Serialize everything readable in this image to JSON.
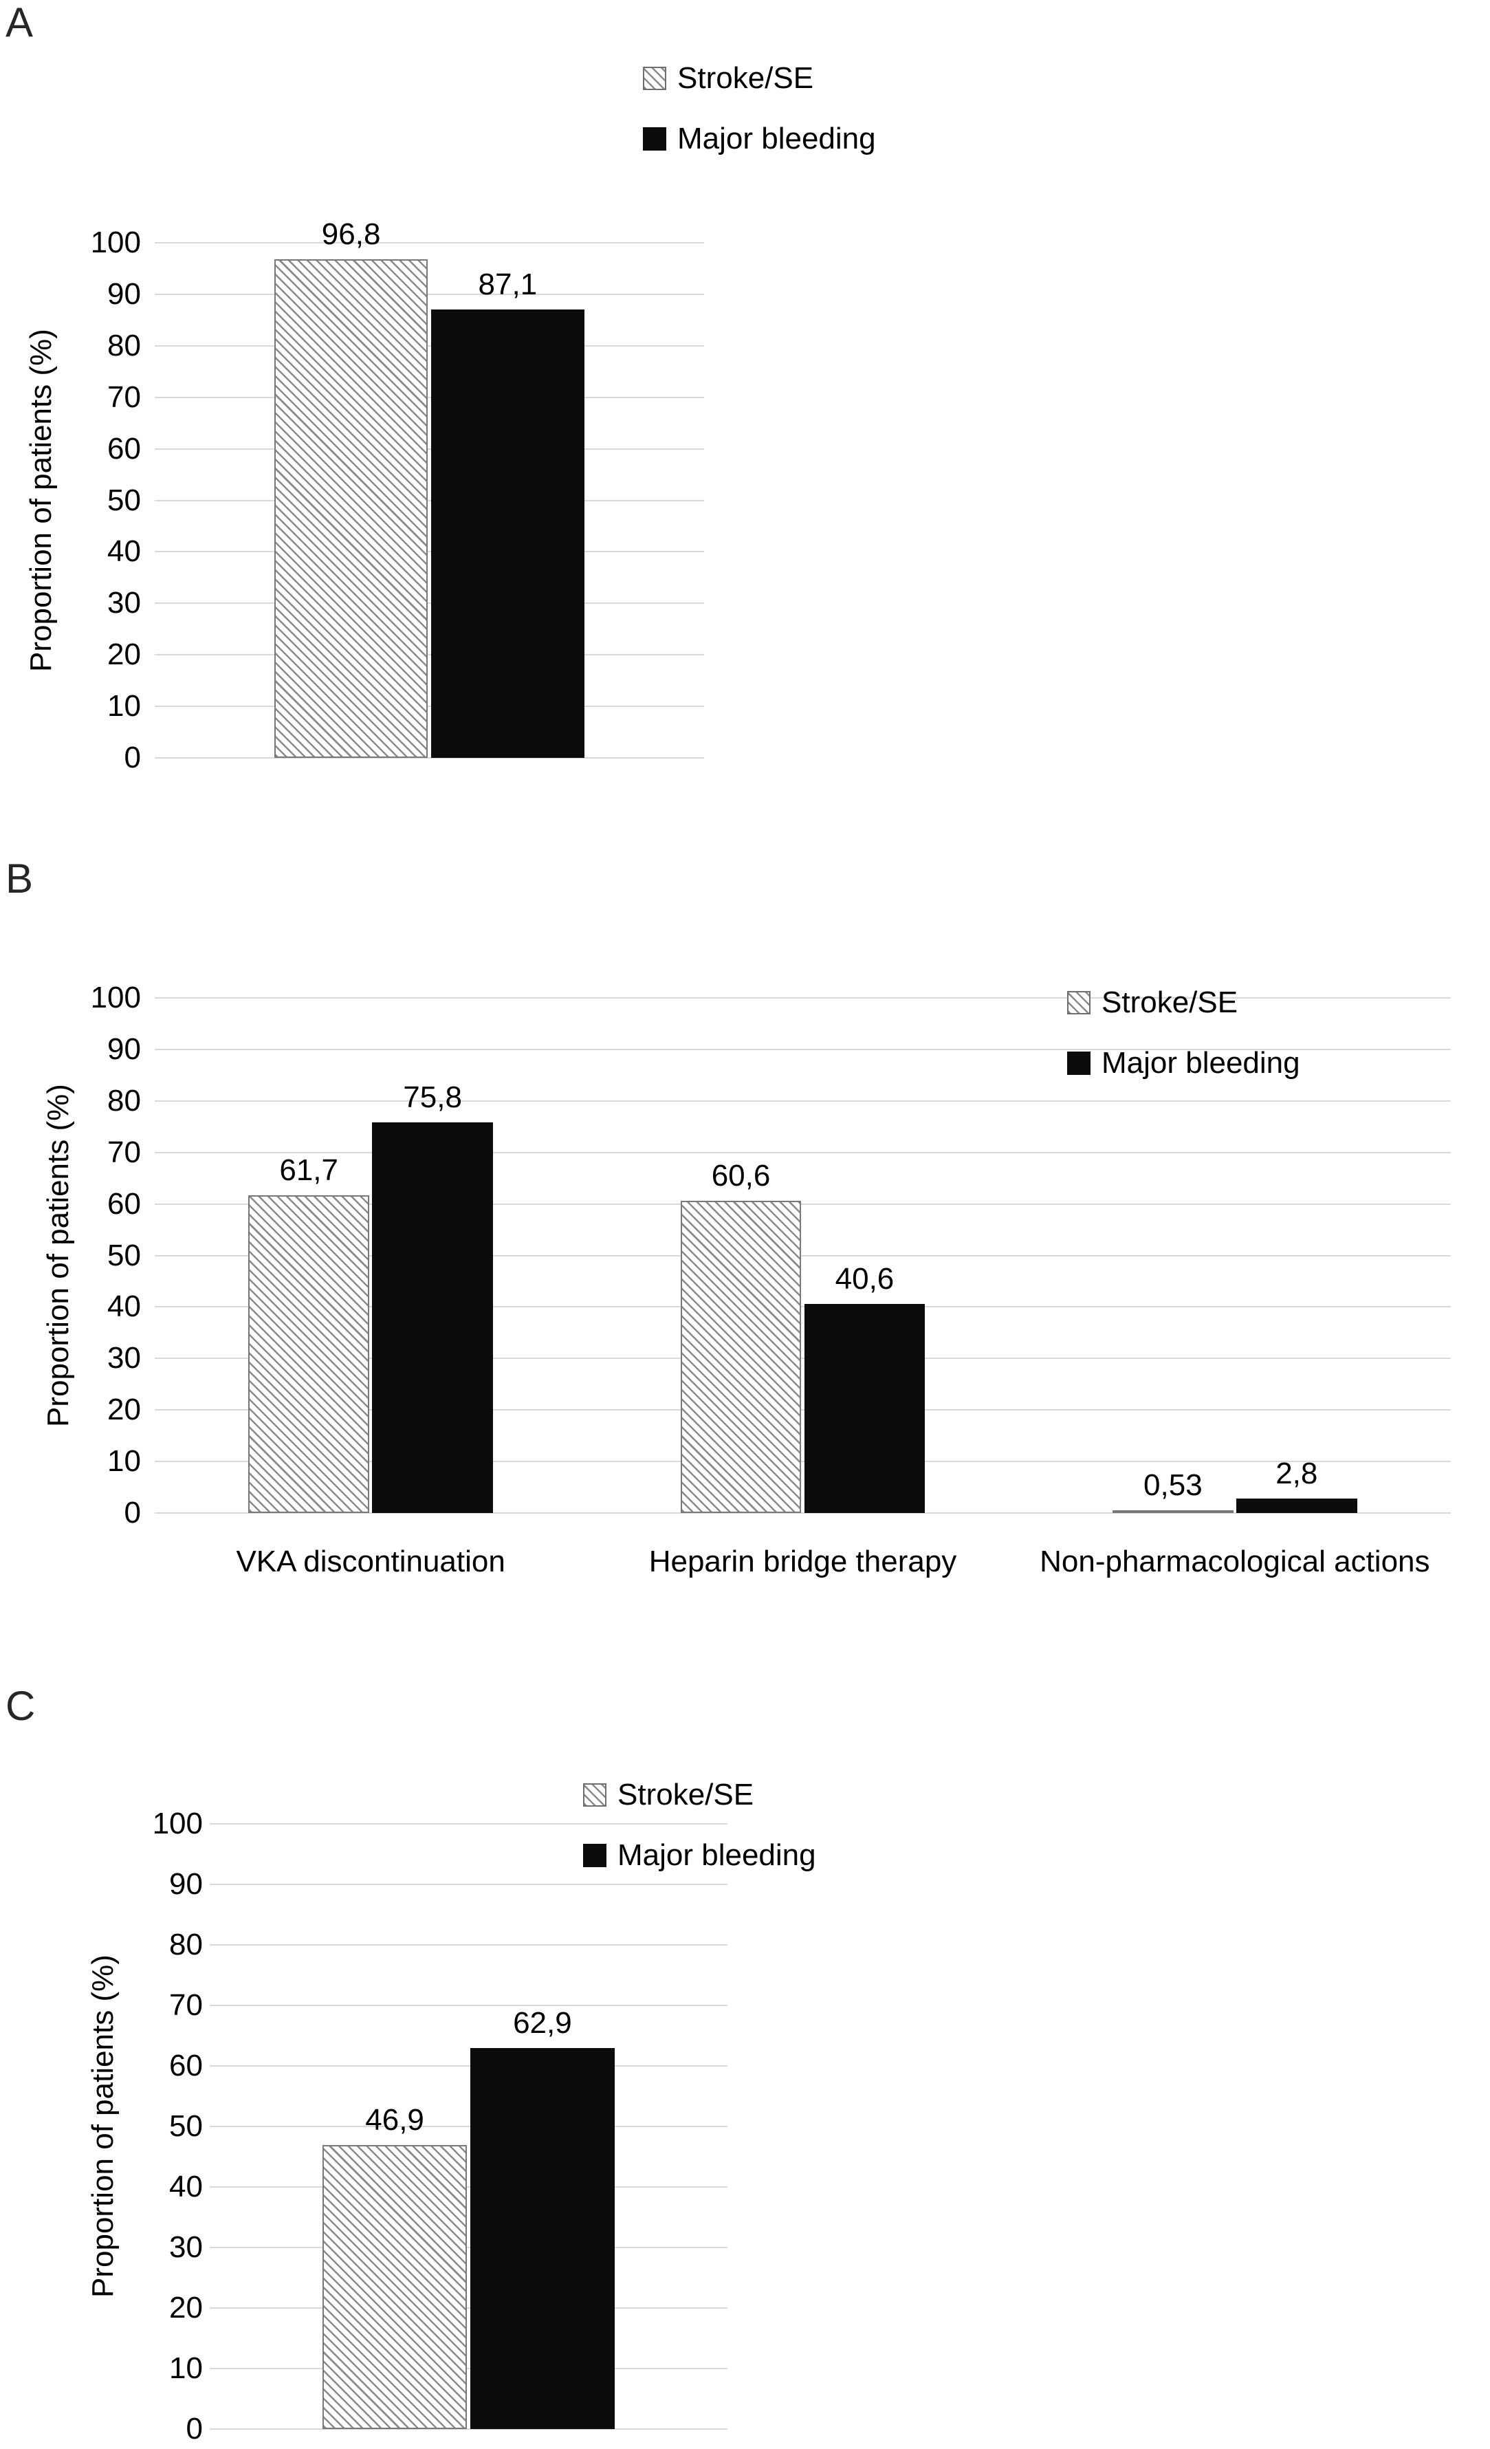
{
  "figure": {
    "panels": [
      {
        "letter": "A"
      },
      {
        "letter": "B"
      },
      {
        "letter": "C"
      }
    ]
  },
  "legend": {
    "items": [
      {
        "label": "Stroke/SE",
        "swatch": "hatched-square"
      },
      {
        "label": "Major bleeding",
        "swatch": "black-square"
      }
    ]
  },
  "colors": {
    "solid_bar": "#0c0c0c",
    "hatch_line": "#8a8a8a",
    "gridline": "#d9d9d9",
    "background": "#ffffff"
  },
  "chart_data": [
    {
      "type": "bar",
      "panel": "A",
      "title": "",
      "categories": [
        ""
      ],
      "series": [
        {
          "name": "Stroke/SE",
          "style": "hatched",
          "values": [
            96.8
          ],
          "labels": [
            "96,8"
          ]
        },
        {
          "name": "Major bleeding",
          "style": "solid-black",
          "values": [
            87.1
          ],
          "labels": [
            "87,1"
          ]
        }
      ],
      "xlabel": "",
      "ylabel": "Proportion of patients (%)",
      "ylim": [
        0,
        100
      ],
      "yticks": [
        0,
        10,
        20,
        30,
        40,
        50,
        60,
        70,
        80,
        90,
        100
      ],
      "grid": true,
      "legend_position": "top-center"
    },
    {
      "type": "bar",
      "panel": "B",
      "title": "",
      "categories": [
        "VKA discontinuation",
        "Heparin bridge therapy",
        "Non-pharmacological actions"
      ],
      "series": [
        {
          "name": "Stroke/SE",
          "style": "hatched",
          "values": [
            61.7,
            60.6,
            0.53
          ],
          "labels": [
            "61,7",
            "60,6",
            "0,53"
          ]
        },
        {
          "name": "Major bleeding",
          "style": "solid-black",
          "values": [
            75.8,
            40.6,
            2.8
          ],
          "labels": [
            "75,8",
            "40,6",
            "2,8"
          ]
        }
      ],
      "xlabel": "",
      "ylabel": "Proportion of patients (%)",
      "ylim": [
        0,
        100
      ],
      "yticks": [
        0,
        10,
        20,
        30,
        40,
        50,
        60,
        70,
        80,
        90,
        100
      ],
      "grid": true,
      "legend_position": "right-inside"
    },
    {
      "type": "bar",
      "panel": "C",
      "title": "",
      "categories": [
        ""
      ],
      "series": [
        {
          "name": "Stroke/SE",
          "style": "hatched",
          "values": [
            46.9
          ],
          "labels": [
            "46,9"
          ]
        },
        {
          "name": "Major bleeding",
          "style": "solid-black",
          "values": [
            62.9
          ],
          "labels": [
            "62,9"
          ]
        }
      ],
      "xlabel": "",
      "ylabel": "Proportion of patients (%)",
      "ylim": [
        0,
        100
      ],
      "yticks": [
        0,
        10,
        20,
        30,
        40,
        50,
        60,
        70,
        80,
        90,
        100
      ],
      "grid": true,
      "legend_position": "top-center"
    }
  ]
}
